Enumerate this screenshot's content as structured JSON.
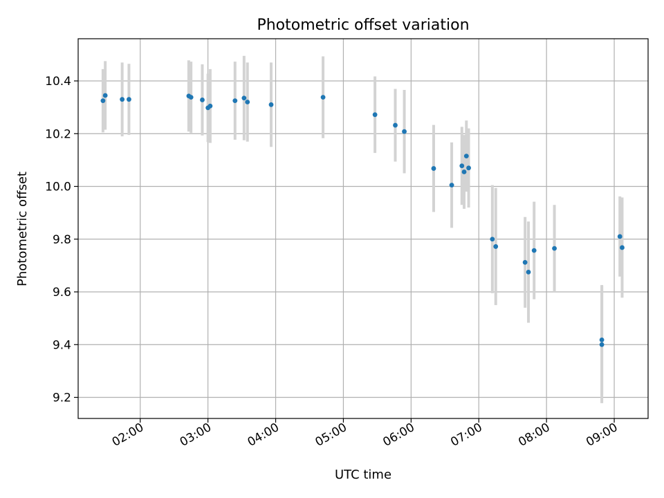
{
  "chart_data": {
    "type": "scatter",
    "title": "Photometric offset variation",
    "xlabel": "UTC time",
    "ylabel": "Photometric offset",
    "xlim": [
      "01:05",
      "09:30"
    ],
    "ylim": [
      9.12,
      10.56
    ],
    "x_ticks": [
      "02:00",
      "03:00",
      "04:00",
      "05:00",
      "06:00",
      "07:00",
      "08:00",
      "09:00"
    ],
    "y_ticks": [
      9.2,
      9.4,
      9.6,
      9.8,
      10.0,
      10.2,
      10.4
    ],
    "y_tick_labels": [
      "9.2",
      "9.4",
      "9.6",
      "9.8",
      "10.0",
      "10.2",
      "10.4"
    ],
    "grid": true,
    "marker_color": "#1f77b4",
    "errorbar_color": "#d3d3d3",
    "points": [
      {
        "x": "01:27",
        "y": 10.325,
        "err": 0.12
      },
      {
        "x": "01:29",
        "y": 10.345,
        "err": 0.13
      },
      {
        "x": "01:44",
        "y": 10.33,
        "err": 0.14
      },
      {
        "x": "01:50",
        "y": 10.33,
        "err": 0.135
      },
      {
        "x": "02:43",
        "y": 10.343,
        "err": 0.135
      },
      {
        "x": "02:45",
        "y": 10.338,
        "err": 0.135
      },
      {
        "x": "02:55",
        "y": 10.328,
        "err": 0.135
      },
      {
        "x": "03:00",
        "y": 10.298,
        "err": 0.13
      },
      {
        "x": "03:02",
        "y": 10.305,
        "err": 0.14
      },
      {
        "x": "03:24",
        "y": 10.325,
        "err": 0.148
      },
      {
        "x": "03:32",
        "y": 10.335,
        "err": 0.16
      },
      {
        "x": "03:35",
        "y": 10.32,
        "err": 0.15
      },
      {
        "x": "03:56",
        "y": 10.31,
        "err": 0.16
      },
      {
        "x": "04:42",
        "y": 10.338,
        "err": 0.155
      },
      {
        "x": "05:28",
        "y": 10.272,
        "err": 0.145
      },
      {
        "x": "05:46",
        "y": 10.232,
        "err": 0.138
      },
      {
        "x": "05:54",
        "y": 10.208,
        "err": 0.158
      },
      {
        "x": "06:20",
        "y": 10.068,
        "err": 0.165
      },
      {
        "x": "06:36",
        "y": 10.005,
        "err": 0.162
      },
      {
        "x": "06:45",
        "y": 10.078,
        "err": 0.148
      },
      {
        "x": "06:47",
        "y": 10.055,
        "err": 0.14
      },
      {
        "x": "06:49",
        "y": 10.115,
        "err": 0.135
      },
      {
        "x": "06:51",
        "y": 10.07,
        "err": 0.15
      },
      {
        "x": "07:12",
        "y": 9.8,
        "err": 0.205
      },
      {
        "x": "07:15",
        "y": 9.772,
        "err": 0.222
      },
      {
        "x": "07:41",
        "y": 9.712,
        "err": 0.172
      },
      {
        "x": "07:44",
        "y": 9.675,
        "err": 0.192
      },
      {
        "x": "07:49",
        "y": 9.757,
        "err": 0.185
      },
      {
        "x": "08:07",
        "y": 9.765,
        "err": 0.165
      },
      {
        "x": "08:49",
        "y": 9.418,
        "err": 0.208
      },
      {
        "x": "08:49",
        "y": 9.4,
        "err": 0.222
      },
      {
        "x": "09:05",
        "y": 9.81,
        "err": 0.152
      },
      {
        "x": "09:07",
        "y": 9.768,
        "err": 0.19
      }
    ]
  }
}
